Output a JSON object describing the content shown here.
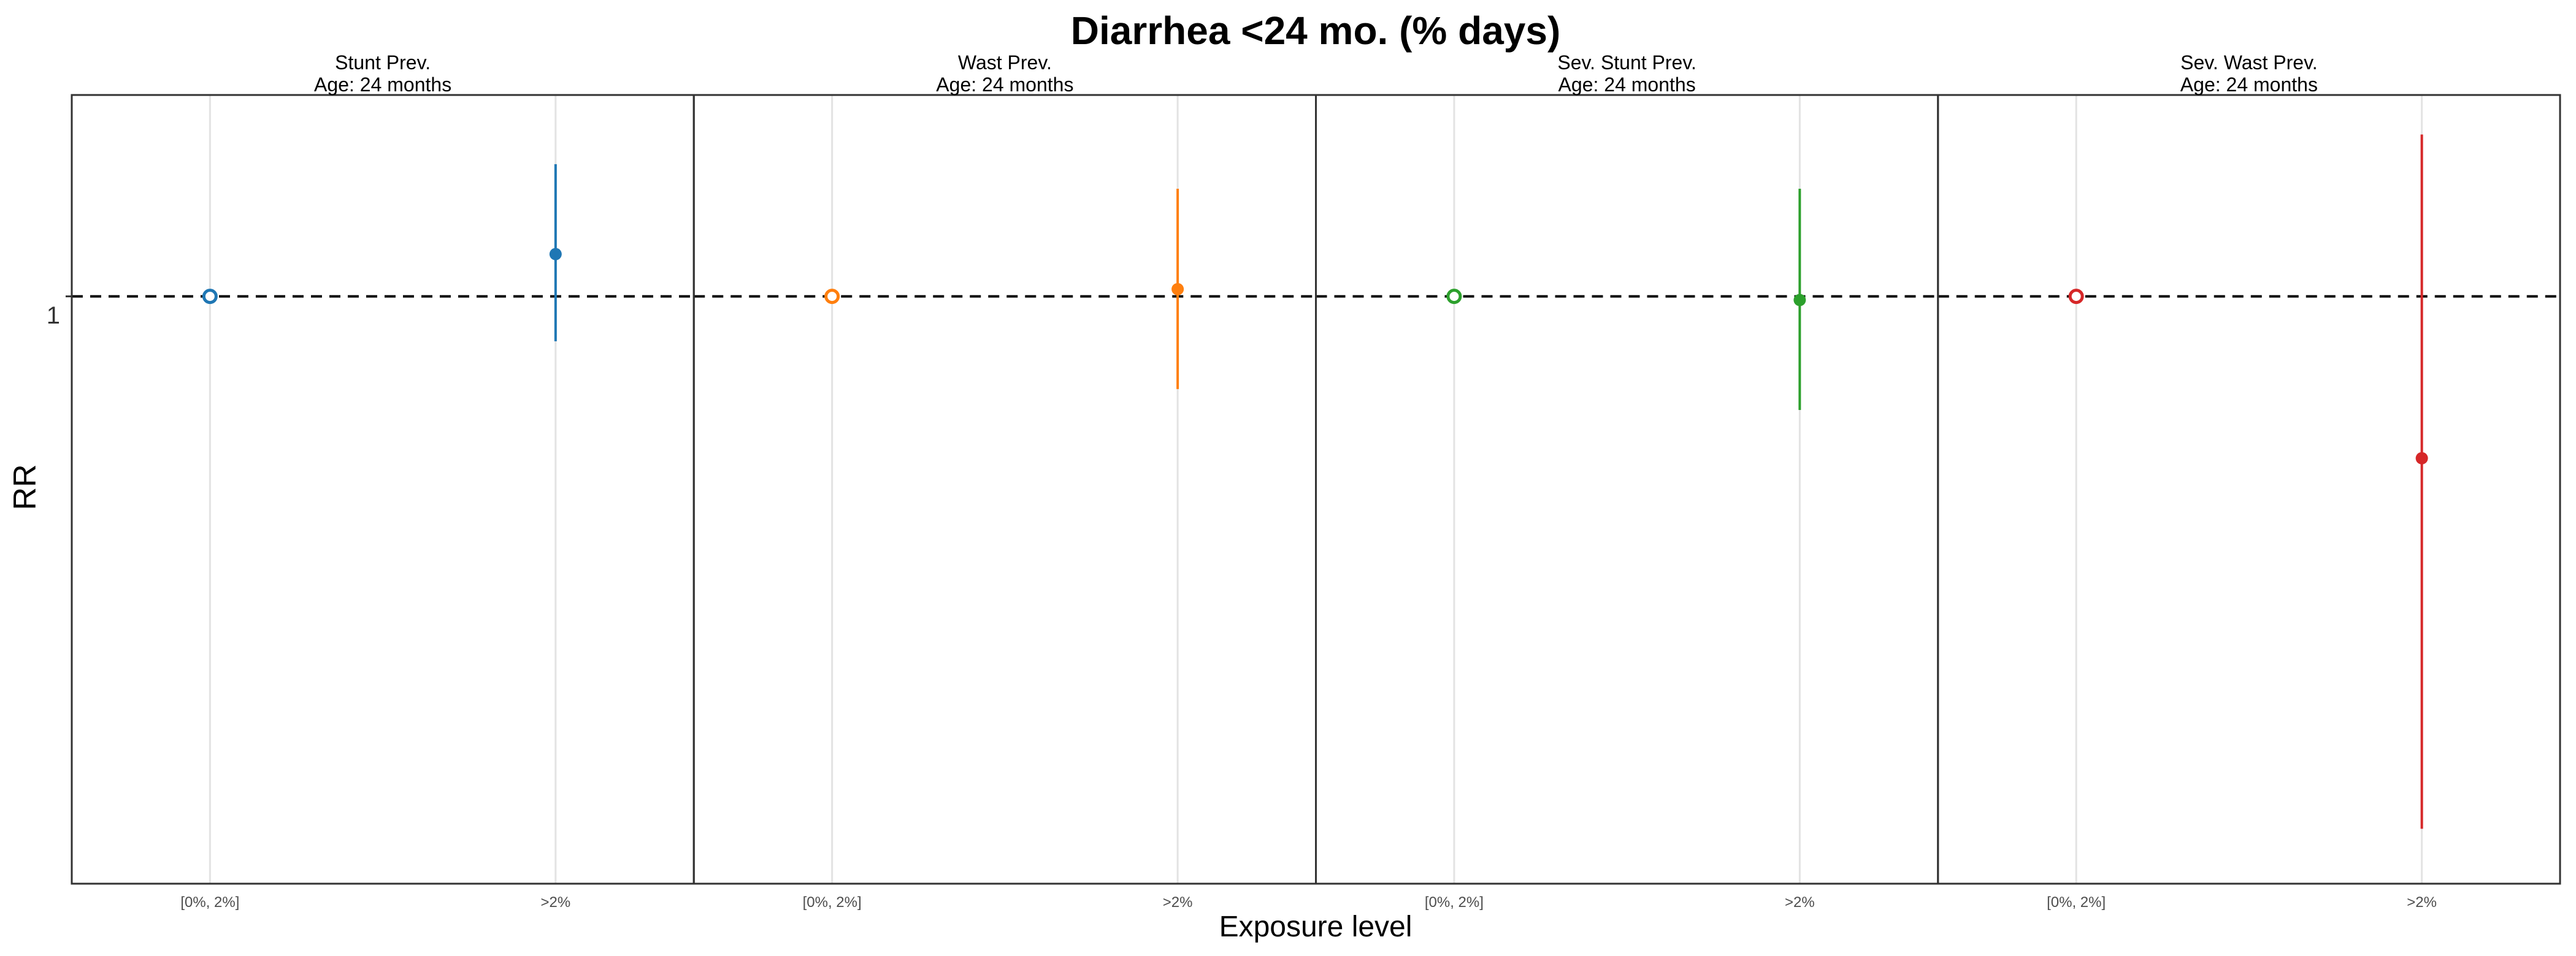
{
  "figure": {
    "title": "Diarrhea <24 mo.  (% days)",
    "xlabel": "Exposure level",
    "ylabel": "RR",
    "reference_line": {
      "value": 1,
      "style": "dashed",
      "tick_label": "1"
    }
  },
  "chart_data": [
    {
      "type": "scatter",
      "facet_title": "Stunt Prev.",
      "facet_subtitle": "Age: 24 months",
      "color": "#1f77b4",
      "categories": [
        "[0%, 2%]",
        ">2%"
      ],
      "ylim": [
        0.445,
        1.32
      ],
      "yscale": "log",
      "grid": "vertical major lines only",
      "points": [
        {
          "x": "[0%, 2%]",
          "y": 1.0,
          "ci_lower": null,
          "ci_upper": null,
          "reference": true
        },
        {
          "x": ">2%",
          "y": 1.06,
          "ci_lower": 0.94,
          "ci_upper": 1.2,
          "reference": false
        }
      ]
    },
    {
      "type": "scatter",
      "facet_title": "Wast Prev.",
      "facet_subtitle": "Age: 24 months",
      "color": "#ff7f0e",
      "categories": [
        "[0%, 2%]",
        ">2%"
      ],
      "ylim": [
        0.445,
        1.32
      ],
      "yscale": "log",
      "grid": "vertical major lines only",
      "points": [
        {
          "x": "[0%, 2%]",
          "y": 1.0,
          "ci_lower": null,
          "ci_upper": null,
          "reference": true
        },
        {
          "x": ">2%",
          "y": 1.01,
          "ci_lower": 0.88,
          "ci_upper": 1.16,
          "reference": false
        }
      ]
    },
    {
      "type": "scatter",
      "facet_title": "Sev. Stunt Prev.",
      "facet_subtitle": "Age: 24 months",
      "color": "#2ca02c",
      "categories": [
        "[0%, 2%]",
        ">2%"
      ],
      "ylim": [
        0.445,
        1.32
      ],
      "yscale": "log",
      "grid": "vertical major lines only",
      "points": [
        {
          "x": "[0%, 2%]",
          "y": 1.0,
          "ci_lower": null,
          "ci_upper": null,
          "reference": true
        },
        {
          "x": ">2%",
          "y": 0.995,
          "ci_lower": 0.855,
          "ci_upper": 1.16,
          "reference": false
        }
      ]
    },
    {
      "type": "scatter",
      "facet_title": "Sev. Wast Prev.",
      "facet_subtitle": "Age: 24 months",
      "color": "#d62728",
      "categories": [
        "[0%, 2%]",
        ">2%"
      ],
      "ylim": [
        0.445,
        1.32
      ],
      "yscale": "log",
      "grid": "vertical major lines only",
      "points": [
        {
          "x": "[0%, 2%]",
          "y": 1.0,
          "ci_lower": null,
          "ci_upper": null,
          "reference": true
        },
        {
          "x": ">2%",
          "y": 0.8,
          "ci_lower": 0.48,
          "ci_upper": 1.25,
          "reference": false
        }
      ]
    }
  ]
}
